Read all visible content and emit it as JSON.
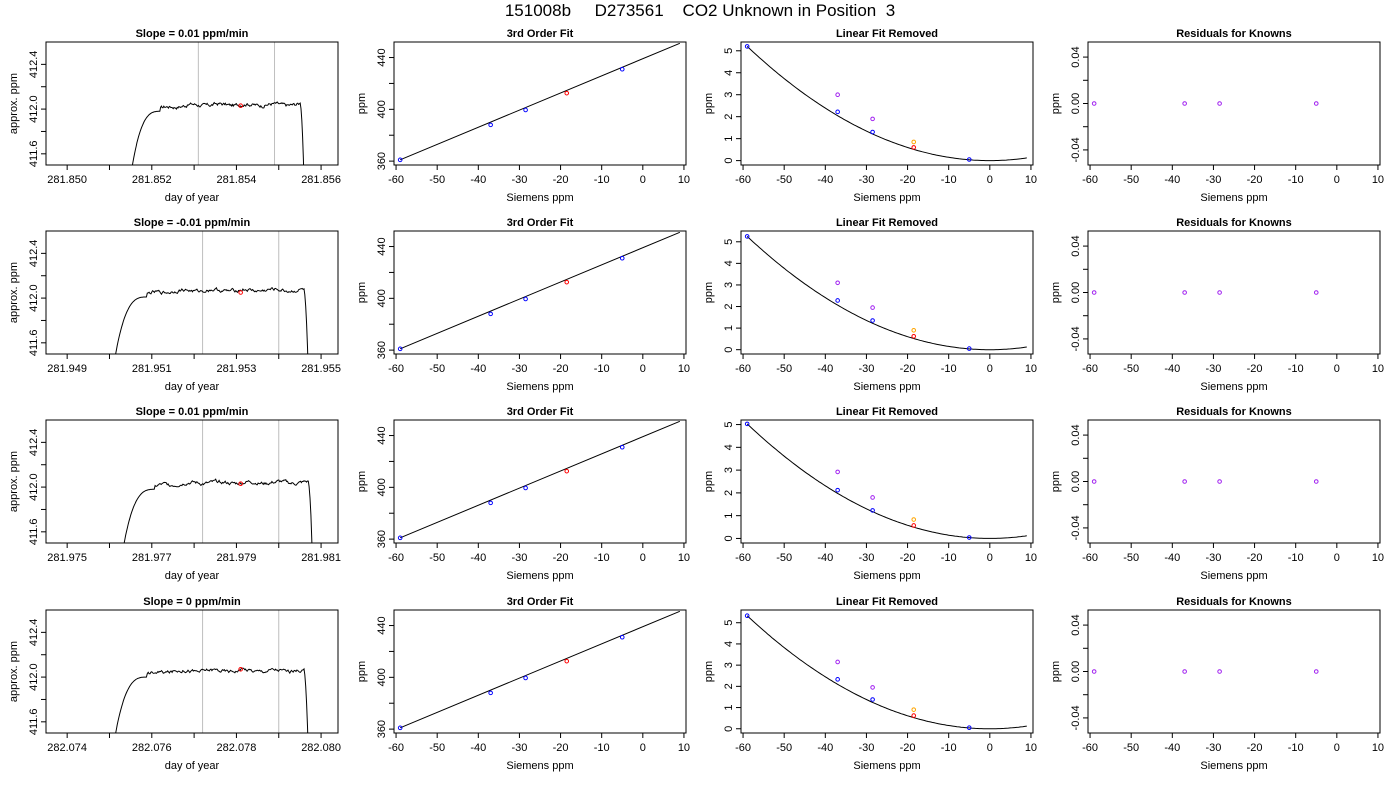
{
  "title": "151008b     D273561    CO2 Unknown in Position  3",
  "colors": {
    "trace": "#000000",
    "window_lines": "#bebebe",
    "unknown_point": "#ff0000",
    "known_points": "#0000ff",
    "linear_points": "#a020f0",
    "unknown_linear_point": "#ffa500",
    "fit_line": "#000000"
  },
  "chart_data": [
    {
      "type": "line",
      "title": "Slope =  0.01  ppm/min",
      "xlabel": "day of year",
      "ylabel": "approx. ppm",
      "xlim": [
        281.8495,
        281.8564
      ],
      "ylim": [
        411.5,
        412.6
      ],
      "xticks": [
        "281.850",
        "281.852",
        "281.854",
        "281.856"
      ],
      "xtick_values": [
        281.85,
        281.852,
        281.854,
        281.856
      ],
      "yticks": [
        "411.6",
        "412.0",
        "412.4"
      ],
      "ytick_values": [
        411.6,
        412.0,
        412.4
      ],
      "minor_xticks": [
        281.851,
        281.853,
        281.855
      ],
      "minor_yticks": [
        411.8,
        412.2
      ],
      "trace_start": 281.8515,
      "trace_end": 281.8556,
      "plateau": 412.04,
      "window_lines": [
        281.8531,
        281.8549
      ],
      "mean_point": {
        "x": 281.8541,
        "y": 412.03
      }
    },
    {
      "type": "scatter",
      "title": "3rd Order Fit",
      "xlabel": "Siemens ppm",
      "ylabel": "ppm",
      "xlim": [
        -60.5,
        10.5
      ],
      "ylim": [
        357,
        452
      ],
      "xticks": [
        "-60",
        "-50",
        "-40",
        "-30",
        "-20",
        "-10",
        "0",
        "10"
      ],
      "xtick_values": [
        -60,
        -50,
        -40,
        -30,
        -20,
        -10,
        0,
        10
      ],
      "yticks": [
        "360",
        "400",
        "440"
      ],
      "ytick_values": [
        360,
        400,
        440
      ],
      "minor_yticks": [
        380,
        420
      ],
      "known_points": [
        {
          "x": -59,
          "y": 361
        },
        {
          "x": -37,
          "y": 388
        },
        {
          "x": -28.5,
          "y": 399.5
        },
        {
          "x": -5,
          "y": 431
        }
      ],
      "unknown_point": {
        "x": -18.5,
        "y": 412.5
      },
      "line": [
        [
          -59,
          361
        ],
        [
          9,
          451
        ]
      ]
    },
    {
      "type": "scatter",
      "title": "Linear Fit Removed",
      "xlabel": "Siemens ppm",
      "ylabel": "ppm",
      "xlim": [
        -60.5,
        10.5
      ],
      "ylim": [
        -0.2,
        5.4
      ],
      "xticks": [
        "-60",
        "-50",
        "-40",
        "-30",
        "-20",
        "-10",
        "0",
        "10"
      ],
      "xtick_values": [
        -60,
        -50,
        -40,
        -30,
        -20,
        -10,
        0,
        10
      ],
      "yticks": [
        "0",
        "1",
        "2",
        "3",
        "4",
        "5"
      ],
      "ytick_values": [
        0,
        1,
        2,
        3,
        4,
        5
      ],
      "known_points": [
        {
          "x": -59,
          "y": 5.2
        },
        {
          "x": -37,
          "y": 2.22
        },
        {
          "x": -28.5,
          "y": 1.3
        },
        {
          "x": -5,
          "y": 0.05
        }
      ],
      "linear_points": [
        {
          "x": -37,
          "y": 3.0
        },
        {
          "x": -28.5,
          "y": 1.9
        }
      ],
      "unknown_linear_point": {
        "x": -18.5,
        "y": 0.85
      },
      "unknown_point": {
        "x": -18.5,
        "y": 0.6
      },
      "curve_vertex": 0,
      "curve_scale": 0.001494
    },
    {
      "type": "scatter",
      "title": "Residuals for Knowns",
      "xlabel": "Siemens ppm",
      "ylabel": "ppm",
      "xlim": [
        -60.5,
        10.5
      ],
      "ylim": [
        -0.053,
        0.053
      ],
      "xticks": [
        "-60",
        "-50",
        "-40",
        "-30",
        "-20",
        "-10",
        "0",
        "10"
      ],
      "xtick_values": [
        -60,
        -50,
        -40,
        -30,
        -20,
        -10,
        0,
        10
      ],
      "yticks": [
        "-0.04",
        "0.00",
        "0.04"
      ],
      "ytick_values": [
        -0.04,
        0,
        0.04
      ],
      "minor_yticks": [
        -0.02,
        0.02
      ],
      "points": [
        {
          "x": -59,
          "y": 0
        },
        {
          "x": -37,
          "y": 0
        },
        {
          "x": -28.5,
          "y": 0
        },
        {
          "x": -5,
          "y": 0
        }
      ]
    },
    {
      "type": "line",
      "title": "Slope =  -0.01  ppm/min",
      "xlabel": "day of year",
      "ylabel": "approx. ppm",
      "xlim": [
        281.9485,
        281.9554
      ],
      "ylim": [
        411.5,
        412.6
      ],
      "xticks": [
        "281.949",
        "281.951",
        "281.953",
        "281.955"
      ],
      "xtick_values": [
        281.949,
        281.951,
        281.953,
        281.955
      ],
      "yticks": [
        "411.6",
        "412.0",
        "412.4"
      ],
      "ytick_values": [
        411.6,
        412.0,
        412.4
      ],
      "minor_xticks": [
        281.95,
        281.952,
        281.954
      ],
      "minor_yticks": [
        411.8,
        412.2
      ],
      "trace_start": 281.9501,
      "trace_end": 281.9547,
      "plateau": 412.07,
      "window_lines": [
        281.9522,
        281.954
      ],
      "mean_point": {
        "x": 281.9531,
        "y": 412.05
      }
    },
    {
      "type": "scatter",
      "title": "3rd Order Fit",
      "xlabel": "Siemens ppm",
      "ylabel": "ppm",
      "xlim": [
        -60.5,
        10.5
      ],
      "ylim": [
        357,
        452
      ],
      "xticks": [
        "-60",
        "-50",
        "-40",
        "-30",
        "-20",
        "-10",
        "0",
        "10"
      ],
      "xtick_values": [
        -60,
        -50,
        -40,
        -30,
        -20,
        -10,
        0,
        10
      ],
      "yticks": [
        "360",
        "400",
        "440"
      ],
      "ytick_values": [
        360,
        400,
        440
      ],
      "minor_yticks": [
        380,
        420
      ],
      "known_points": [
        {
          "x": -59,
          "y": 361
        },
        {
          "x": -37,
          "y": 388
        },
        {
          "x": -28.5,
          "y": 399.5
        },
        {
          "x": -5,
          "y": 431
        }
      ],
      "unknown_point": {
        "x": -18.5,
        "y": 412.5
      },
      "line": [
        [
          -59,
          361
        ],
        [
          9,
          451
        ]
      ]
    },
    {
      "type": "scatter",
      "title": "Linear Fit Removed",
      "xlabel": "Siemens ppm",
      "ylabel": "ppm",
      "xlim": [
        -60.5,
        10.5
      ],
      "ylim": [
        -0.2,
        5.5
      ],
      "xticks": [
        "-60",
        "-50",
        "-40",
        "-30",
        "-20",
        "-10",
        "0",
        "10"
      ],
      "xtick_values": [
        -60,
        -50,
        -40,
        -30,
        -20,
        -10,
        0,
        10
      ],
      "yticks": [
        "0",
        "1",
        "2",
        "3",
        "4",
        "5"
      ],
      "ytick_values": [
        0,
        1,
        2,
        3,
        4,
        5
      ],
      "known_points": [
        {
          "x": -59,
          "y": 5.25
        },
        {
          "x": -37,
          "y": 2.28
        },
        {
          "x": -28.5,
          "y": 1.35
        },
        {
          "x": -5,
          "y": 0.05
        }
      ],
      "linear_points": [
        {
          "x": -37,
          "y": 3.1
        },
        {
          "x": -28.5,
          "y": 1.95
        }
      ],
      "unknown_linear_point": {
        "x": -18.5,
        "y": 0.9
      },
      "unknown_point": {
        "x": -18.5,
        "y": 0.62
      },
      "curve_vertex": 0,
      "curve_scale": 0.001508
    },
    {
      "type": "scatter",
      "title": "Residuals for Knowns",
      "xlabel": "Siemens ppm",
      "ylabel": "ppm",
      "xlim": [
        -60.5,
        10.5
      ],
      "ylim": [
        -0.053,
        0.053
      ],
      "xticks": [
        "-60",
        "-50",
        "-40",
        "-30",
        "-20",
        "-10",
        "0",
        "10"
      ],
      "xtick_values": [
        -60,
        -50,
        -40,
        -30,
        -20,
        -10,
        0,
        10
      ],
      "yticks": [
        "-0.04",
        "0.00",
        "0.04"
      ],
      "ytick_values": [
        -0.04,
        0,
        0.04
      ],
      "minor_yticks": [
        -0.02,
        0.02
      ],
      "points": [
        {
          "x": -59,
          "y": 0
        },
        {
          "x": -37,
          "y": 0
        },
        {
          "x": -28.5,
          "y": 0
        },
        {
          "x": -5,
          "y": 0
        }
      ]
    },
    {
      "type": "line",
      "title": "Slope =  0.01  ppm/min",
      "xlabel": "day of year",
      "ylabel": "approx. ppm",
      "xlim": [
        281.9745,
        281.9814
      ],
      "ylim": [
        411.5,
        412.6
      ],
      "xticks": [
        "281.975",
        "281.977",
        "281.979",
        "281.981"
      ],
      "xtick_values": [
        281.975,
        281.977,
        281.979,
        281.981
      ],
      "yticks": [
        "411.6",
        "412.0",
        "412.4"
      ],
      "ytick_values": [
        411.6,
        412.0,
        412.4
      ],
      "minor_xticks": [
        281.976,
        281.978,
        281.98
      ],
      "minor_yticks": [
        411.8,
        412.2
      ],
      "trace_start": 281.9763,
      "trace_end": 281.9808,
      "plateau": 412.04,
      "window_lines": [
        281.9782,
        281.98
      ],
      "mean_point": {
        "x": 281.9791,
        "y": 412.03
      }
    },
    {
      "type": "scatter",
      "title": "3rd Order Fit",
      "xlabel": "Siemens ppm",
      "ylabel": "ppm",
      "xlim": [
        -60.5,
        10.5
      ],
      "ylim": [
        357,
        452
      ],
      "xticks": [
        "-60",
        "-50",
        "-40",
        "-30",
        "-20",
        "-10",
        "0",
        "10"
      ],
      "xtick_values": [
        -60,
        -50,
        -40,
        -30,
        -20,
        -10,
        0,
        10
      ],
      "yticks": [
        "360",
        "400",
        "440"
      ],
      "ytick_values": [
        360,
        400,
        440
      ],
      "minor_yticks": [
        380,
        420
      ],
      "known_points": [
        {
          "x": -59,
          "y": 361
        },
        {
          "x": -37,
          "y": 388
        },
        {
          "x": -28.5,
          "y": 399.5
        },
        {
          "x": -5,
          "y": 431
        }
      ],
      "unknown_point": {
        "x": -18.5,
        "y": 412.5
      },
      "line": [
        [
          -59,
          361
        ],
        [
          9,
          451
        ]
      ]
    },
    {
      "type": "scatter",
      "title": "Linear Fit Removed",
      "xlabel": "Siemens ppm",
      "ylabel": "ppm",
      "xlim": [
        -60.5,
        10.5
      ],
      "ylim": [
        -0.2,
        5.2
      ],
      "xticks": [
        "-60",
        "-50",
        "-40",
        "-30",
        "-20",
        "-10",
        "0",
        "10"
      ],
      "xtick_values": [
        -60,
        -50,
        -40,
        -30,
        -20,
        -10,
        0,
        10
      ],
      "yticks": [
        "0",
        "1",
        "2",
        "3",
        "4",
        "5"
      ],
      "ytick_values": [
        0,
        1,
        2,
        3,
        4,
        5
      ],
      "known_points": [
        {
          "x": -59,
          "y": 5.03
        },
        {
          "x": -37,
          "y": 2.12
        },
        {
          "x": -28.5,
          "y": 1.23
        },
        {
          "x": -5,
          "y": 0.04
        }
      ],
      "linear_points": [
        {
          "x": -37,
          "y": 2.92
        },
        {
          "x": -28.5,
          "y": 1.8
        }
      ],
      "unknown_linear_point": {
        "x": -18.5,
        "y": 0.83
      },
      "unknown_point": {
        "x": -18.5,
        "y": 0.57
      },
      "curve_vertex": 0,
      "curve_scale": 0.001445
    },
    {
      "type": "scatter",
      "title": "Residuals for Knowns",
      "xlabel": "Siemens ppm",
      "ylabel": "ppm",
      "xlim": [
        -60.5,
        10.5
      ],
      "ylim": [
        -0.053,
        0.053
      ],
      "xticks": [
        "-60",
        "-50",
        "-40",
        "-30",
        "-20",
        "-10",
        "0",
        "10"
      ],
      "xtick_values": [
        -60,
        -50,
        -40,
        -30,
        -20,
        -10,
        0,
        10
      ],
      "yticks": [
        "-0.04",
        "0.00",
        "0.04"
      ],
      "ytick_values": [
        -0.04,
        0,
        0.04
      ],
      "minor_yticks": [
        -0.02,
        0.02
      ],
      "points": [
        {
          "x": -59,
          "y": 0
        },
        {
          "x": -37,
          "y": 0
        },
        {
          "x": -28.5,
          "y": 0
        },
        {
          "x": -5,
          "y": 0
        }
      ]
    },
    {
      "type": "line",
      "title": "Slope =  0  ppm/min",
      "xlabel": "day of year",
      "ylabel": "approx. ppm",
      "xlim": [
        282.0735,
        282.0804
      ],
      "ylim": [
        411.5,
        412.6
      ],
      "xticks": [
        "282.074",
        "282.076",
        "282.078",
        "282.080"
      ],
      "xtick_values": [
        282.074,
        282.076,
        282.078,
        282.08
      ],
      "yticks": [
        "411.6",
        "412.0",
        "412.4"
      ],
      "ytick_values": [
        411.6,
        412.0,
        412.4
      ],
      "minor_xticks": [
        282.075,
        282.077,
        282.079
      ],
      "minor_yticks": [
        411.8,
        412.2
      ],
      "trace_start": 282.0751,
      "trace_end": 282.0797,
      "plateau": 412.06,
      "window_lines": [
        282.0772,
        282.079
      ],
      "mean_point": {
        "x": 282.0781,
        "y": 412.07
      }
    },
    {
      "type": "scatter",
      "title": "3rd Order Fit",
      "xlabel": "Siemens ppm",
      "ylabel": "ppm",
      "xlim": [
        -60.5,
        10.5
      ],
      "ylim": [
        357,
        452
      ],
      "xticks": [
        "-60",
        "-50",
        "-40",
        "-30",
        "-20",
        "-10",
        "0",
        "10"
      ],
      "xtick_values": [
        -60,
        -50,
        -40,
        -30,
        -20,
        -10,
        0,
        10
      ],
      "yticks": [
        "360",
        "400",
        "440"
      ],
      "ytick_values": [
        360,
        400,
        440
      ],
      "minor_yticks": [
        380,
        420
      ],
      "known_points": [
        {
          "x": -59,
          "y": 361
        },
        {
          "x": -37,
          "y": 388
        },
        {
          "x": -28.5,
          "y": 399.5
        },
        {
          "x": -5,
          "y": 431
        }
      ],
      "unknown_point": {
        "x": -18.5,
        "y": 412.5
      },
      "line": [
        [
          -59,
          361
        ],
        [
          9,
          451
        ]
      ]
    },
    {
      "type": "scatter",
      "title": "Linear Fit Removed",
      "xlabel": "Siemens ppm",
      "ylabel": "ppm",
      "xlim": [
        -60.5,
        10.5
      ],
      "ylim": [
        -0.2,
        5.6
      ],
      "xticks": [
        "-60",
        "-50",
        "-40",
        "-30",
        "-20",
        "-10",
        "0",
        "10"
      ],
      "xtick_values": [
        -60,
        -50,
        -40,
        -30,
        -20,
        -10,
        0,
        10
      ],
      "yticks": [
        "0",
        "1",
        "2",
        "3",
        "4",
        "5"
      ],
      "ytick_values": [
        0,
        1,
        2,
        3,
        4,
        5
      ],
      "known_points": [
        {
          "x": -59,
          "y": 5.33
        },
        {
          "x": -37,
          "y": 2.33
        },
        {
          "x": -28.5,
          "y": 1.38
        },
        {
          "x": -5,
          "y": 0.05
        }
      ],
      "linear_points": [
        {
          "x": -37,
          "y": 3.15
        },
        {
          "x": -28.5,
          "y": 1.95
        }
      ],
      "unknown_linear_point": {
        "x": -18.5,
        "y": 0.9
      },
      "unknown_point": {
        "x": -18.5,
        "y": 0.62
      },
      "curve_vertex": 0,
      "curve_scale": 0.001531
    },
    {
      "type": "scatter",
      "title": "Residuals for Knowns",
      "xlabel": "Siemens ppm",
      "ylabel": "ppm",
      "xlim": [
        -60.5,
        10.5
      ],
      "ylim": [
        -0.053,
        0.053
      ],
      "xticks": [
        "-60",
        "-50",
        "-40",
        "-30",
        "-20",
        "-10",
        "0",
        "10"
      ],
      "xtick_values": [
        -60,
        -50,
        -40,
        -30,
        -20,
        -10,
        0,
        10
      ],
      "yticks": [
        "-0.04",
        "0.00",
        "0.04"
      ],
      "ytick_values": [
        -0.04,
        0,
        0.04
      ],
      "minor_yticks": [
        -0.02,
        0.02
      ],
      "points": [
        {
          "x": -59,
          "y": 0
        },
        {
          "x": -37,
          "y": 0
        },
        {
          "x": -28.5,
          "y": 0
        },
        {
          "x": -5,
          "y": 0
        }
      ]
    }
  ]
}
